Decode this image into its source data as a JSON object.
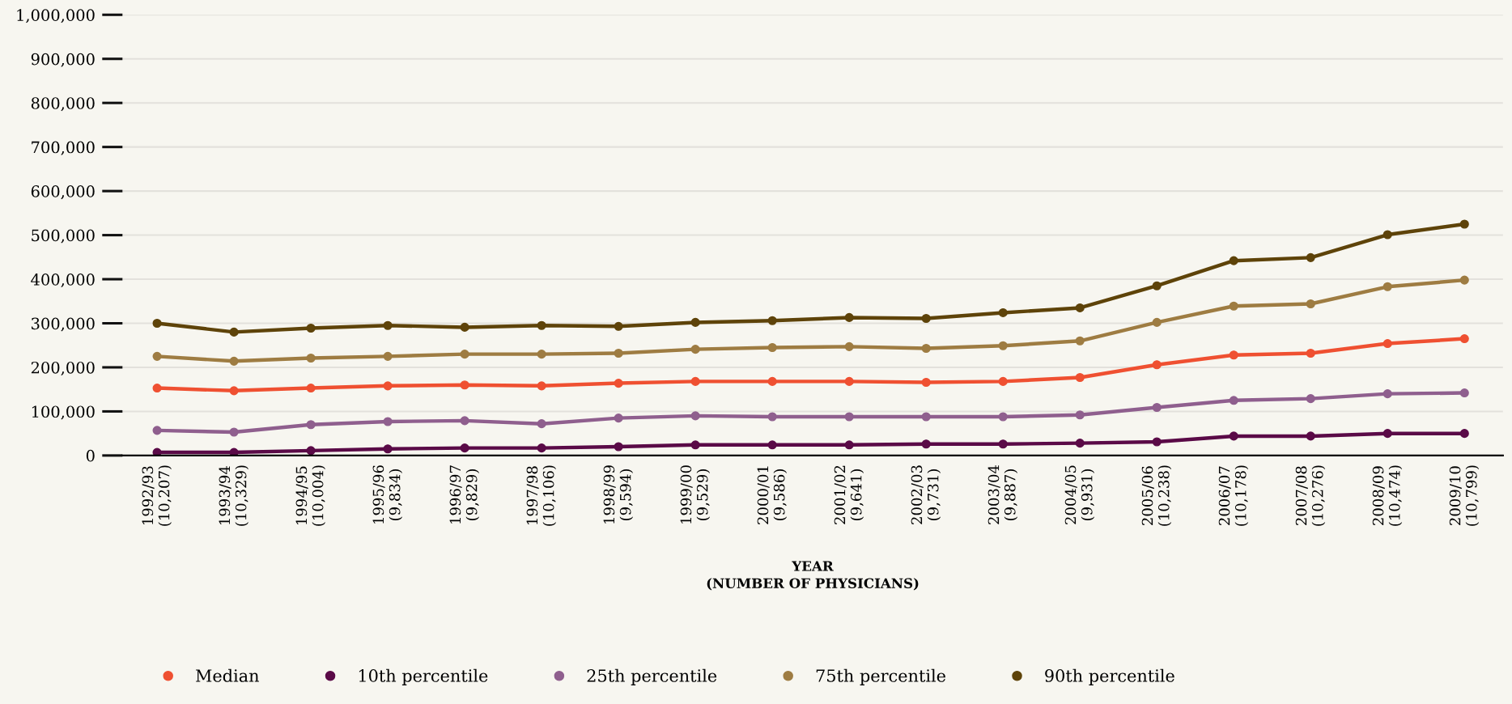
{
  "chart_data": {
    "type": "line",
    "xlabel": "YEAR\n(NUMBER OF PHYSICIANS)",
    "categories": [
      "1992/93\n(10,207)",
      "1993/94\n(10,329)",
      "1994/95\n(10,004)",
      "1995/96\n(9,834)",
      "1996/97\n(9,829)",
      "1997/98\n(10,106)",
      "1998/99\n(9,594)",
      "1999/00\n(9,529)",
      "2000/01\n(9,586)",
      "2001/02\n(9,641)",
      "2002/03\n(9,731)",
      "2003/04\n(9,887)",
      "2004/05\n(9,931)",
      "2005/06\n(10,238)",
      "2006/07\n(10,178)",
      "2007/08\n(10,276)",
      "2008/09\n(10,474)",
      "2009/10\n(10,799)"
    ],
    "series": [
      {
        "name": "Median",
        "color": "#ef5031",
        "values": [
          153000,
          147000,
          153000,
          158000,
          160000,
          158000,
          164000,
          168000,
          168000,
          168000,
          166000,
          168000,
          177000,
          206000,
          228000,
          232000,
          254000,
          265000
        ]
      },
      {
        "name": "10th percentile",
        "color": "#5a0a47",
        "values": [
          7000,
          7000,
          11000,
          15000,
          17000,
          17000,
          20000,
          24000,
          24000,
          24000,
          26000,
          26000,
          28000,
          31000,
          44000,
          44000,
          50000,
          50000
        ]
      },
      {
        "name": "25th percentile",
        "color": "#8f5f8e",
        "values": [
          57000,
          53000,
          70000,
          77000,
          79000,
          72000,
          85000,
          90000,
          88000,
          88000,
          88000,
          88000,
          92000,
          109000,
          125000,
          129000,
          140000,
          142000
        ]
      },
      {
        "name": "75th percentile",
        "color": "#9e7c42",
        "values": [
          225000,
          214000,
          221000,
          225000,
          230000,
          230000,
          232000,
          241000,
          245000,
          247000,
          243000,
          249000,
          260000,
          302000,
          339000,
          344000,
          383000,
          398000
        ]
      },
      {
        "name": "90th percentile",
        "color": "#5e4309",
        "values": [
          300000,
          280000,
          289000,
          295000,
          291000,
          295000,
          293000,
          302000,
          306000,
          313000,
          311000,
          324000,
          335000,
          385000,
          442000,
          449000,
          501000,
          525000
        ]
      }
    ],
    "ylim": [
      0,
      1000000
    ],
    "yticks": [
      0,
      {
        "value": 100000,
        "label": "100,000"
      },
      {
        "value": 200000,
        "label": "200,000"
      },
      {
        "value": 300000,
        "label": "300,000"
      },
      {
        "value": 400000,
        "label": "400,000"
      },
      {
        "value": 500000,
        "label": "500,000"
      },
      {
        "value": 600000,
        "label": "600,000"
      },
      {
        "value": 700000,
        "label": "700,000"
      },
      {
        "value": 800000,
        "label": "800,000"
      },
      {
        "value": 900000,
        "label": "900,000"
      },
      {
        "value": 1000000,
        "label": "1,000,000"
      }
    ],
    "grid": "y",
    "legend": "bottom left",
    "marker": "circle",
    "line_style": "solid"
  }
}
